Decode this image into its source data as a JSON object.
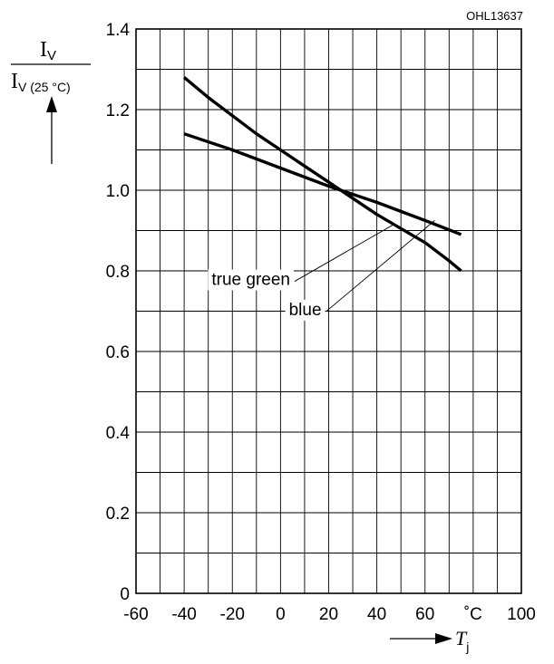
{
  "chart_data": {
    "type": "line",
    "figure_id": "OHL13637",
    "ylabel": {
      "numerator_main": "I",
      "numerator_sub": "V",
      "denominator_main": "I",
      "denominator_sub": "V (25 °C)"
    },
    "xlabel": {
      "main": "T",
      "sub": "j"
    },
    "x_unit_label": "˚C",
    "xlim": [
      -60,
      100
    ],
    "ylim": [
      0,
      1.4
    ],
    "x_ticks": [
      "-60",
      "-40",
      "-20",
      "0",
      "20",
      "40",
      "60",
      "˚C",
      "100"
    ],
    "y_ticks": [
      "0",
      "0.2",
      "0.4",
      "0.6",
      "0.8",
      "1.0",
      "1.2",
      "1.4"
    ],
    "grid": true,
    "series": [
      {
        "name": "true green",
        "x": [
          -40,
          -30,
          -20,
          -10,
          0,
          10,
          20,
          25,
          30,
          40,
          50,
          60,
          70,
          75
        ],
        "y": [
          1.28,
          1.23,
          1.185,
          1.14,
          1.1,
          1.06,
          1.02,
          1.0,
          0.98,
          0.94,
          0.905,
          0.87,
          0.825,
          0.8
        ]
      },
      {
        "name": "blue",
        "x": [
          -40,
          -20,
          0,
          20,
          25,
          40,
          60,
          75
        ],
        "y": [
          1.14,
          1.1,
          1.055,
          1.01,
          1.0,
          0.97,
          0.925,
          0.89
        ]
      }
    ],
    "annotations": [
      {
        "text": "true green",
        "series": "true green",
        "label_x": 4,
        "label_y": 0.765,
        "arrow_to_x": 47,
        "arrow_to_y": 0.915
      },
      {
        "text": "blue",
        "series": "blue",
        "label_x": 17,
        "label_y": 0.69,
        "arrow_to_x": 64,
        "arrow_to_y": 0.925
      }
    ]
  }
}
